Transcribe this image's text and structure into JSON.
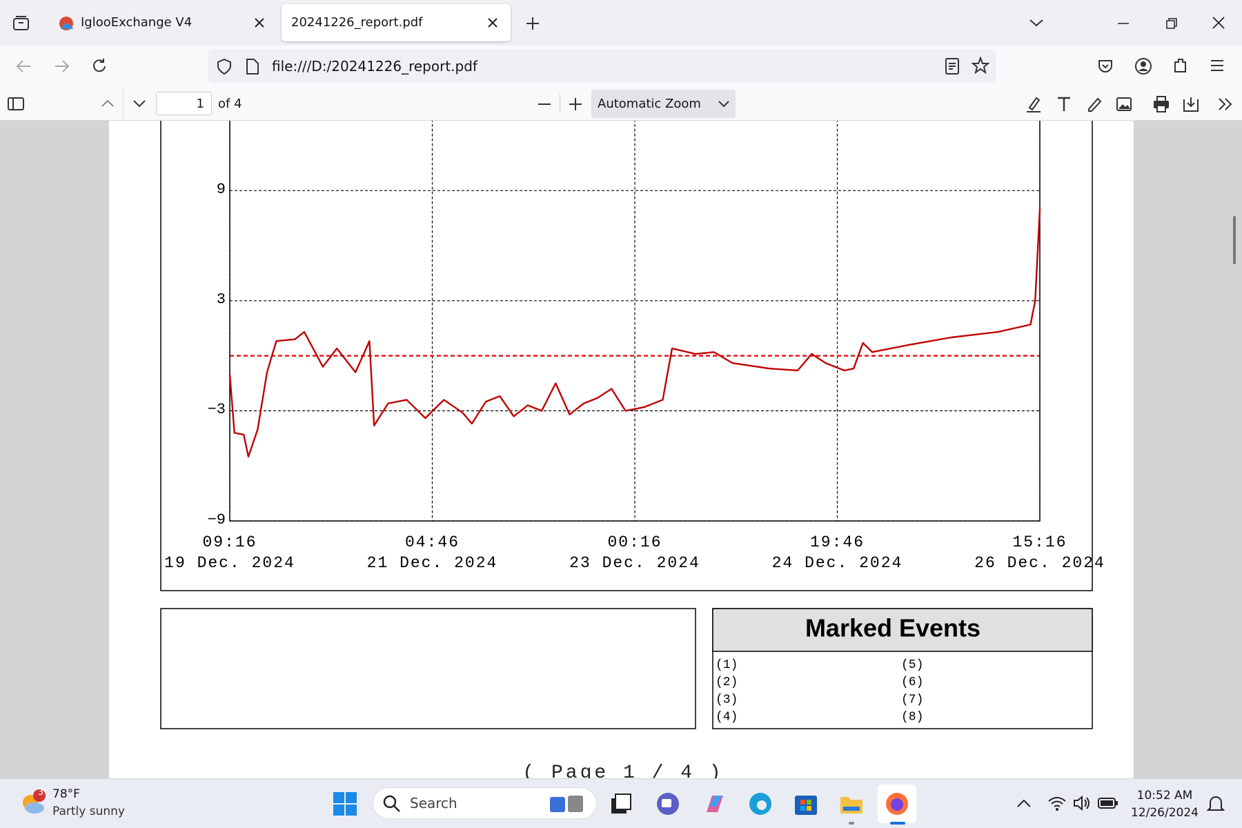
{
  "browser": {
    "tabs": [
      "IglooExchange V4",
      "20241226_report.pdf"
    ],
    "url": "file:///D:/20241226_report.pdf"
  },
  "pdf_toolbar": {
    "page": "1",
    "page_count": "of 4",
    "zoom": "Automatic Zoom"
  },
  "chart_data": {
    "type": "line",
    "x": [
      "2024-12-19 09:16",
      "2024-12-19 10:16",
      "2024-12-19 12:16",
      "2024-12-19 13:16",
      "2024-12-19 15:16",
      "2024-12-19 17:16",
      "2024-12-19 19:16",
      "2024-12-19 23:16",
      "2024-12-20 01:16",
      "2024-12-20 05:16",
      "2024-12-20 08:16",
      "2024-12-20 12:16",
      "2024-12-20 15:16",
      "2024-12-20 16:16",
      "2024-12-20 19:16",
      "2024-12-20 23:16",
      "2024-12-21 03:16",
      "2024-12-21 07:16",
      "2024-12-21 11:16",
      "2024-12-21 13:16",
      "2024-12-21 16:16",
      "2024-12-21 19:16",
      "2024-12-21 22:16",
      "2024-12-22 01:16",
      "2024-12-22 04:16",
      "2024-12-22 07:16",
      "2024-12-22 10:16",
      "2024-12-22 13:16",
      "2024-12-22 16:16",
      "2024-12-22 19:16",
      "2024-12-22 22:16",
      "2024-12-23 02:16",
      "2024-12-23 06:16",
      "2024-12-23 08:16",
      "2024-12-23 13:16",
      "2024-12-23 17:16",
      "2024-12-23 21:16",
      "2024-12-24 05:16",
      "2024-12-24 11:16",
      "2024-12-24 14:16",
      "2024-12-24 17:16",
      "2024-12-24 21:16",
      "2024-12-24 23:16",
      "2024-12-25 01:16",
      "2024-12-25 03:16",
      "2024-12-25 11:16",
      "2024-12-25 20:16",
      "2024-12-26 06:16",
      "2024-12-26 13:16",
      "2024-12-26 14:16",
      "2024-12-26 15:16"
    ],
    "series": [
      {
        "color": "#c00000",
        "values": [
          -1.0,
          -4.2,
          -4.3,
          -5.5,
          -4.0,
          -0.9,
          0.8,
          0.9,
          1.3,
          -0.6,
          0.4,
          -0.9,
          0.8,
          -3.8,
          -2.6,
          -2.4,
          -3.4,
          -2.4,
          -3.1,
          -3.7,
          -2.5,
          -2.2,
          -3.3,
          -2.7,
          -3.0,
          -1.5,
          -3.2,
          -2.6,
          -2.3,
          -1.8,
          -3.0,
          -2.8,
          -2.4,
          0.4,
          0.1,
          0.2,
          -0.4,
          -0.7,
          -0.8,
          0.1,
          -0.4,
          -0.8,
          -0.7,
          0.7,
          0.2,
          0.6,
          1.0,
          1.3,
          1.7,
          3.0,
          8.0
        ]
      }
    ],
    "xlim": [
      "2024-12-19 09:16",
      "2024-12-26 15:16"
    ],
    "xticks": [
      {
        "value": "2024-12-19 09:16",
        "label": [
          "09:16",
          "19 Dec. 2024"
        ]
      },
      {
        "value": "2024-12-21 04:46",
        "label": [
          "04:46",
          "21 Dec. 2024"
        ]
      },
      {
        "value": "2024-12-23 00:16",
        "label": [
          "00:16",
          "23 Dec. 2024"
        ]
      },
      {
        "value": "2024-12-24 19:46",
        "label": [
          "19:46",
          "24 Dec. 2024"
        ]
      },
      {
        "value": "2024-12-26 15:16",
        "label": [
          "15:16",
          "26 Dec. 2024"
        ]
      }
    ],
    "ylim": [
      -9,
      15
    ],
    "yticks": [
      {
        "value": -9,
        "label": "−9"
      },
      {
        "value": -3,
        "label": "−3"
      },
      3,
      9
    ],
    "grid": true,
    "reference_line": {
      "value": 0,
      "color": "#e00000"
    }
  },
  "marked_events": {
    "title": "Marked Events",
    "items": [
      "(1)",
      "(2)",
      "(3)",
      "(4)",
      "(5)",
      "(6)",
      "(7)",
      "(8)"
    ]
  },
  "footer": "( Page 1 / 4 )",
  "taskbar": {
    "badge": "3",
    "temperature": "78°F",
    "weather": "Partly sunny",
    "search": "Search",
    "time": "10:52 AM",
    "date": "12/26/2024"
  }
}
